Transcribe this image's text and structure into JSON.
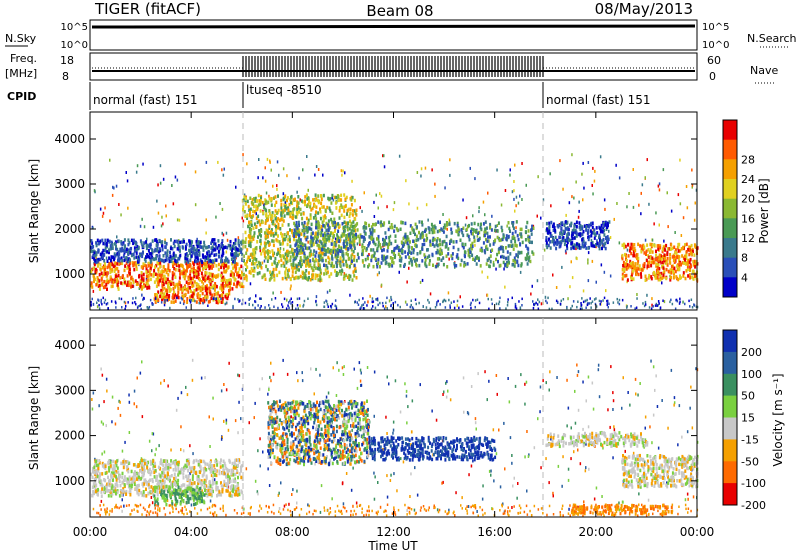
{
  "header": {
    "radar": "TIGER (fitACF)",
    "beam": "Beam 08",
    "date": "08/May/2013"
  },
  "strip": {
    "nsky_label": "N.Sky",
    "nsky_ticks": [
      "10^5",
      "10^0"
    ],
    "nsearch_label": "N.Search",
    "freq_label": "Freq.",
    "freq_unit": "[MHz]",
    "freq_ticks": [
      "18",
      "8"
    ],
    "nave_label": "Nave",
    "nave_ticks": [
      "60",
      "0"
    ],
    "cpid_label": "CPID",
    "cpid_segments": [
      {
        "label": "normal (fast) 151",
        "start_hour": 0,
        "end_hour": 6
      },
      {
        "label": "ltuseq -8510",
        "start_hour": 6,
        "end_hour": 18
      },
      {
        "label": "normal (fast) 151",
        "start_hour": 18,
        "end_hour": 24
      }
    ]
  },
  "chart_data": [
    {
      "type": "heatmap",
      "name": "power",
      "ylabel": "Slant Range [km]",
      "ylim": [
        200,
        4600
      ],
      "yticks": [
        1000,
        2000,
        3000,
        4000
      ],
      "xlim": [
        0,
        24
      ],
      "xticks": [
        "00:00",
        "04:00",
        "08:00",
        "12:00",
        "16:00",
        "20:00",
        "00:00"
      ],
      "colorbar": {
        "label": "Power [dB]",
        "ticks": [
          "4",
          "8",
          "12",
          "16",
          "20",
          "24",
          "28"
        ],
        "colors": [
          "#0000c8",
          "#2a4fb8",
          "#3a7a8c",
          "#4a9a55",
          "#8ab832",
          "#e0d020",
          "#f5a000",
          "#ff5a00",
          "#e80000"
        ]
      },
      "regions": [
        {
          "from_hour": 0,
          "to_hour": 6,
          "range_from": 700,
          "range_to": 1300,
          "level": "high"
        },
        {
          "from_hour": 0,
          "to_hour": 6,
          "range_from": 1300,
          "range_to": 1800,
          "level": "low"
        },
        {
          "from_hour": 2.5,
          "to_hour": 5.5,
          "range_from": 400,
          "range_to": 700,
          "level": "high"
        },
        {
          "from_hour": 6,
          "to_hour": 10.5,
          "range_from": 900,
          "range_to": 2800,
          "level": "mid-high"
        },
        {
          "from_hour": 8,
          "to_hour": 17.5,
          "range_from": 1200,
          "range_to": 2200,
          "level": "mid"
        },
        {
          "from_hour": 18,
          "to_hour": 20.5,
          "range_from": 1600,
          "range_to": 2200,
          "level": "low"
        },
        {
          "from_hour": 21,
          "to_hour": 24,
          "range_from": 900,
          "range_to": 1700,
          "level": "high"
        }
      ]
    },
    {
      "type": "heatmap",
      "name": "velocity",
      "ylabel": "Slant Range [km]",
      "xlabel": "Time UT",
      "ylim": [
        200,
        4600
      ],
      "yticks": [
        1000,
        2000,
        3000,
        4000
      ],
      "xlim": [
        0,
        24
      ],
      "xticks": [
        "00:00",
        "04:00",
        "08:00",
        "12:00",
        "16:00",
        "20:00",
        "00:00"
      ],
      "colorbar": {
        "label": "Velocity [m s⁻¹]",
        "ticks": [
          "200",
          "100",
          "50",
          "15",
          "-15",
          "-50",
          "-100",
          "-200"
        ],
        "colors": [
          "#1030b0",
          "#2a60a0",
          "#3a9060",
          "#7ad040",
          "#c8c8c8",
          "#f5a000",
          "#ff6a00",
          "#e80000"
        ]
      },
      "regions": [
        {
          "from_hour": 0,
          "to_hour": 6,
          "range_from": 700,
          "range_to": 1500,
          "level": "near-zero"
        },
        {
          "from_hour": 2.5,
          "to_hour": 4.5,
          "range_from": 500,
          "range_to": 900,
          "level": "positive-small"
        },
        {
          "from_hour": 7,
          "to_hour": 11,
          "range_from": 1400,
          "range_to": 2800,
          "level": "mixed"
        },
        {
          "from_hour": 11,
          "to_hour": 16,
          "range_from": 1500,
          "range_to": 2000,
          "level": "positive-large"
        },
        {
          "from_hour": 18,
          "to_hour": 22,
          "range_from": 1800,
          "range_to": 2100,
          "level": "near-zero"
        },
        {
          "from_hour": 21,
          "to_hour": 24,
          "range_from": 900,
          "range_to": 1600,
          "level": "near-zero"
        },
        {
          "from_hour": 19,
          "to_hour": 23,
          "range_from": 300,
          "range_to": 500,
          "level": "negative-small"
        }
      ]
    }
  ]
}
